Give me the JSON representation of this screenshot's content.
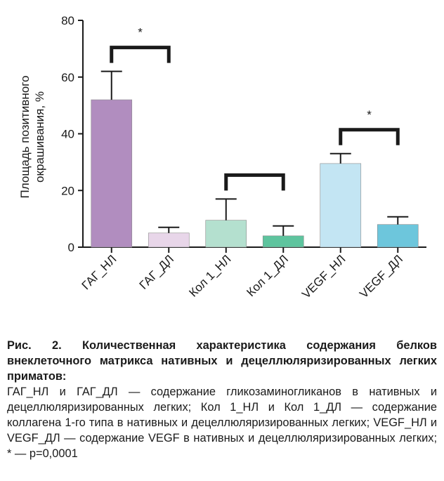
{
  "chart_data": {
    "type": "bar",
    "categories": [
      "ГАГ_НЛ",
      "ГАГ_ДЛ",
      "Кол 1_НЛ",
      "Кол 1_ДЛ",
      "VEGF_НЛ",
      "VEGF_ДЛ"
    ],
    "values": [
      52,
      5,
      9.5,
      4,
      29.5,
      8
    ],
    "errors": [
      10,
      2,
      7.5,
      3.5,
      3.5,
      2.7
    ],
    "colors": [
      "#b18dbf",
      "#e8d6e9",
      "#b4e0cf",
      "#5ec49e",
      "#c3e5f3",
      "#6dc6dc"
    ],
    "ylabel_line1": "Площадь позитивного",
    "ylabel_line2": "окрашивания, %",
    "ylim": [
      0,
      80
    ],
    "yticks": [
      0,
      20,
      40,
      60,
      80
    ],
    "significance": [
      {
        "from": 0,
        "to": 1,
        "label": "*"
      },
      {
        "from": 2,
        "to": 3,
        "label": ""
      },
      {
        "from": 4,
        "to": 5,
        "label": "*"
      }
    ],
    "grid": false,
    "legend": "none"
  },
  "caption": {
    "title": "Рис. 2. Количественная характеристика содержания белков внеклеточного матрикса нативных и децеллюляризированных легких приматов:",
    "body": "ГАГ_НЛ и ГАГ_ДЛ — содержание гликозаминогликанов в нативных и децеллюляризированных легких; Кол 1_НЛ и Кол 1_ДЛ — содержание коллагена 1-го типа в нативных и децеллюляризированных легких; VEGF_НЛ и VEGF_ДЛ — содержание VEGF в нативных и децеллюляризированных легких; * — p=0,0001"
  }
}
